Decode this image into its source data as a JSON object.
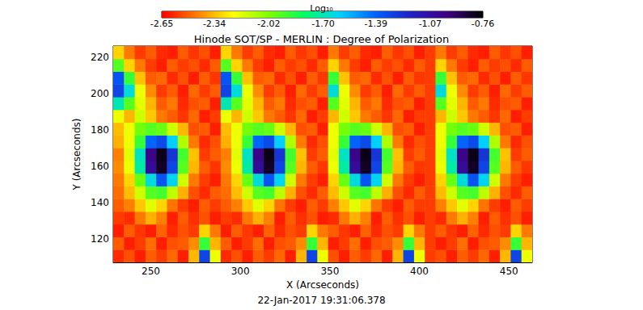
{
  "chart_data": {
    "type": "heatmap",
    "title": "Hinode SOT/SP - MERLIN : Degree of Polarization",
    "xlabel": "X (Arcseconds)",
    "ylabel": "Y (Arcseconds)",
    "annotations": [
      "22-Jan-2017 19:31:06.378"
    ],
    "xlim": [
      229,
      463
    ],
    "ylim": [
      107,
      226
    ],
    "xticks": [
      250,
      300,
      350,
      400,
      450
    ],
    "yticks": [
      120,
      140,
      160,
      180,
      200,
      220
    ],
    "grid": false,
    "colorbar": {
      "title": "Log₁₀",
      "zlim": [
        -2.65,
        -0.76
      ],
      "zticks": [
        -2.65,
        -2.34,
        -2.02,
        {
          "value": -1.7,
          "label": "-1.70"
        },
        -1.39,
        -1.07,
        -0.76
      ]
    },
    "cells": {
      "x_edges": [
        229,
        235,
        241,
        247,
        253,
        259,
        265,
        271,
        277,
        283,
        289,
        295,
        301,
        307,
        313,
        319,
        325,
        331,
        337,
        343,
        349,
        355,
        361,
        367,
        373,
        379,
        385,
        391,
        397,
        403,
        409,
        415,
        421,
        427,
        433,
        439,
        445,
        451,
        457,
        463
      ],
      "y_edges": [
        107,
        114,
        121,
        128,
        135,
        142,
        149,
        156,
        163,
        170,
        177,
        184,
        191,
        198,
        205,
        212,
        219,
        226
      ],
      "z": [
        [
          -2.58,
          -2.52,
          -2.6,
          -2.5,
          -2.55,
          -2.48,
          -2.6,
          -2.35,
          -1.3,
          -2.2,
          -2.58,
          -2.52,
          -2.6,
          -2.5,
          -2.55,
          -2.48,
          -2.6,
          -2.35,
          -1.3,
          -2.2,
          -2.52,
          -2.6,
          -2.5,
          -2.55,
          -2.48,
          -2.6,
          -2.35,
          -1.3,
          -2.2,
          -2.55,
          -2.52,
          -2.6,
          -2.5,
          -2.55,
          -2.48,
          -2.6,
          -2.35,
          -1.3,
          -2.2
        ],
        [
          -2.5,
          -2.6,
          -2.55,
          -2.47,
          -2.6,
          -2.52,
          -2.5,
          -2.42,
          -1.9,
          -2.35,
          -2.5,
          -2.6,
          -2.55,
          -2.47,
          -2.6,
          -2.52,
          -2.5,
          -2.42,
          -1.9,
          -2.35,
          -2.6,
          -2.55,
          -2.47,
          -2.6,
          -2.52,
          -2.5,
          -2.42,
          -1.9,
          -2.35,
          -2.55,
          -2.6,
          -2.55,
          -2.47,
          -2.6,
          -2.52,
          -2.5,
          -2.42,
          -1.9,
          -2.35
        ],
        [
          -2.6,
          -2.5,
          -2.56,
          -2.6,
          -2.49,
          -2.58,
          -2.52,
          -2.55,
          -2.3,
          -2.45,
          -2.6,
          -2.5,
          -2.56,
          -2.6,
          -2.49,
          -2.58,
          -2.52,
          -2.55,
          -2.3,
          -2.45,
          -2.5,
          -2.56,
          -2.6,
          -2.49,
          -2.58,
          -2.52,
          -2.55,
          -2.3,
          -2.45,
          -2.55,
          -2.5,
          -2.56,
          -2.6,
          -2.49,
          -2.58,
          -2.52,
          -2.55,
          -2.3,
          -2.45
        ],
        [
          -2.55,
          -2.58,
          -2.45,
          -2.36,
          -2.44,
          -2.6,
          -2.5,
          -2.57,
          -2.52,
          -2.6,
          -2.55,
          -2.58,
          -2.45,
          -2.36,
          -2.44,
          -2.6,
          -2.5,
          -2.57,
          -2.52,
          -2.6,
          -2.58,
          -2.45,
          -2.36,
          -2.44,
          -2.6,
          -2.5,
          -2.57,
          -2.52,
          -2.6,
          -2.55,
          -2.58,
          -2.45,
          -2.36,
          -2.44,
          -2.6,
          -2.5,
          -2.57,
          -2.52,
          -2.6
        ],
        [
          -2.5,
          -2.44,
          -2.32,
          -2.18,
          -2.3,
          -2.46,
          -2.55,
          -2.6,
          -2.5,
          -2.55,
          -2.5,
          -2.44,
          -2.32,
          -2.18,
          -2.3,
          -2.46,
          -2.55,
          -2.6,
          -2.5,
          -2.55,
          -2.44,
          -2.32,
          -2.18,
          -2.3,
          -2.46,
          -2.55,
          -2.6,
          -2.5,
          -2.55,
          -2.55,
          -2.44,
          -2.32,
          -2.18,
          -2.3,
          -2.46,
          -2.55,
          -2.6,
          -2.5,
          -2.55
        ],
        [
          -2.47,
          -2.34,
          -2.15,
          -1.95,
          -1.92,
          -2.12,
          -2.36,
          -2.52,
          -2.58,
          -2.5,
          -2.47,
          -2.34,
          -2.15,
          -1.95,
          -1.92,
          -2.12,
          -2.36,
          -2.52,
          -2.58,
          -2.5,
          -2.34,
          -2.15,
          -1.95,
          -1.92,
          -2.12,
          -2.36,
          -2.52,
          -2.58,
          -2.5,
          -2.55,
          -2.34,
          -2.15,
          -1.95,
          -1.92,
          -2.12,
          -2.36,
          -2.52,
          -2.58,
          -2.5
        ],
        [
          -2.45,
          -2.3,
          -1.98,
          -1.65,
          -1.35,
          -1.62,
          -2.15,
          -2.45,
          -2.55,
          -2.6,
          -2.45,
          -2.3,
          -1.98,
          -1.65,
          -1.35,
          -1.62,
          -2.15,
          -2.45,
          -2.55,
          -2.6,
          -2.3,
          -1.98,
          -1.65,
          -1.35,
          -1.62,
          -2.15,
          -2.45,
          -2.55,
          -2.6,
          -2.55,
          -2.3,
          -1.98,
          -1.65,
          -1.35,
          -1.62,
          -2.15,
          -2.45,
          -2.55,
          -2.6
        ],
        [
          -2.42,
          -2.2,
          -1.72,
          -1.05,
          -0.82,
          -1.3,
          -1.95,
          -2.35,
          -2.5,
          -2.56,
          -2.42,
          -2.2,
          -1.72,
          -1.05,
          -0.82,
          -1.3,
          -1.95,
          -2.35,
          -2.5,
          -2.56,
          -2.2,
          -1.72,
          -1.05,
          -0.82,
          -1.3,
          -1.95,
          -2.35,
          -2.5,
          -2.56,
          -2.55,
          -2.2,
          -1.72,
          -1.05,
          -0.82,
          -1.3,
          -1.95,
          -2.35,
          -2.5,
          -2.56
        ],
        [
          -2.44,
          -2.18,
          -1.68,
          -1.0,
          -0.8,
          -1.25,
          -1.92,
          -2.33,
          -2.55,
          -2.5,
          -2.44,
          -2.18,
          -1.68,
          -1.0,
          -0.8,
          -1.25,
          -1.92,
          -2.33,
          -2.55,
          -2.5,
          -2.18,
          -1.68,
          -1.0,
          -0.8,
          -1.25,
          -1.92,
          -2.33,
          -2.55,
          -2.5,
          -2.55,
          -2.18,
          -1.68,
          -1.0,
          -0.8,
          -1.25,
          -1.92,
          -2.33,
          -2.55,
          -2.5
        ],
        [
          -2.36,
          -2.2,
          -1.9,
          -1.4,
          -1.32,
          -1.6,
          -2.1,
          -2.45,
          -2.58,
          -2.52,
          -2.36,
          -2.2,
          -1.9,
          -1.4,
          -1.32,
          -1.6,
          -2.1,
          -2.45,
          -2.58,
          -2.52,
          -2.2,
          -1.9,
          -1.4,
          -1.32,
          -1.6,
          -2.1,
          -2.45,
          -2.58,
          -2.52,
          -2.55,
          -2.2,
          -1.9,
          -1.4,
          -1.32,
          -1.6,
          -2.1,
          -2.45,
          -2.58,
          -2.52
        ],
        [
          -2.34,
          -2.2,
          -2.0,
          -1.95,
          -1.98,
          -2.15,
          -2.35,
          -2.52,
          -2.5,
          -2.6,
          -2.34,
          -2.2,
          -2.0,
          -1.95,
          -1.98,
          -2.15,
          -2.35,
          -2.52,
          -2.5,
          -2.6,
          -2.2,
          -2.0,
          -1.95,
          -1.98,
          -2.15,
          -2.35,
          -2.52,
          -2.5,
          -2.6,
          -2.55,
          -2.2,
          -2.0,
          -1.95,
          -1.98,
          -2.15,
          -2.35,
          -2.52,
          -2.5,
          -2.6
        ],
        [
          -2.2,
          -2.35,
          -2.15,
          -2.32,
          -2.45,
          -2.5,
          -2.56,
          -2.48,
          -2.6,
          -2.55,
          -2.2,
          -2.35,
          -2.15,
          -2.32,
          -2.45,
          -2.5,
          -2.56,
          -2.48,
          -2.6,
          -2.55,
          -2.35,
          -2.15,
          -2.32,
          -2.45,
          -2.5,
          -2.56,
          -2.48,
          -2.6,
          -2.55,
          -2.55,
          -2.35,
          -2.15,
          -2.32,
          -2.45,
          -2.5,
          -2.56,
          -2.48,
          -2.6,
          -2.55
        ],
        [
          -1.7,
          -1.95,
          -2.18,
          -2.35,
          -2.5,
          -2.45,
          -2.58,
          -2.52,
          -2.5,
          -2.6,
          -1.7,
          -1.95,
          -2.18,
          -2.35,
          -2.5,
          -2.45,
          -2.58,
          -2.52,
          -2.5,
          -2.6,
          -1.95,
          -2.18,
          -2.35,
          -2.5,
          -2.45,
          -2.58,
          -2.52,
          -2.5,
          -2.6,
          -2.55,
          -1.95,
          -2.18,
          -2.35,
          -2.5,
          -2.45,
          -2.58,
          -2.52,
          -2.5,
          -2.6
        ],
        [
          -1.3,
          -1.65,
          -2.2,
          -2.42,
          -2.55,
          -2.5,
          -2.6,
          -2.48,
          -2.55,
          -2.5,
          -1.3,
          -1.65,
          -2.2,
          -2.42,
          -2.55,
          -2.5,
          -2.6,
          -2.48,
          -2.55,
          -2.5,
          -1.65,
          -2.2,
          -2.42,
          -2.55,
          -2.5,
          -2.6,
          -2.48,
          -2.55,
          -2.5,
          -2.55,
          -1.65,
          -2.2,
          -2.42,
          -2.55,
          -2.5,
          -2.6,
          -2.48,
          -2.55,
          -2.5
        ],
        [
          -1.35,
          -1.9,
          -2.33,
          -2.5,
          -2.48,
          -2.58,
          -2.52,
          -2.6,
          -2.5,
          -2.56,
          -1.35,
          -1.9,
          -2.33,
          -2.5,
          -2.48,
          -2.58,
          -2.52,
          -2.6,
          -2.5,
          -2.56,
          -1.9,
          -2.33,
          -2.5,
          -2.48,
          -2.58,
          -2.52,
          -2.6,
          -2.5,
          -2.56,
          -2.55,
          -1.9,
          -2.33,
          -2.5,
          -2.48,
          -2.58,
          -2.52,
          -2.6,
          -2.5,
          -2.56
        ],
        [
          -1.95,
          -2.3,
          -2.45,
          -2.55,
          -2.6,
          -2.5,
          -2.55,
          -2.52,
          -2.58,
          -2.5,
          -1.95,
          -2.3,
          -2.45,
          -2.55,
          -2.6,
          -2.5,
          -2.55,
          -2.52,
          -2.58,
          -2.5,
          -2.3,
          -2.45,
          -2.55,
          -2.6,
          -2.5,
          -2.55,
          -2.52,
          -2.58,
          -2.5,
          -2.55,
          -2.3,
          -2.45,
          -2.55,
          -2.6,
          -2.5,
          -2.55,
          -2.52,
          -2.58,
          -2.5
        ],
        [
          -2.3,
          -2.45,
          -2.55,
          -2.5,
          -2.58,
          -2.6,
          -2.5,
          -2.56,
          -2.52,
          -2.6,
          -2.3,
          -2.45,
          -2.55,
          -2.5,
          -2.58,
          -2.6,
          -2.5,
          -2.56,
          -2.52,
          -2.6,
          -2.45,
          -2.55,
          -2.5,
          -2.58,
          -2.6,
          -2.5,
          -2.56,
          -2.52,
          -2.6,
          -2.55,
          -2.45,
          -2.55,
          -2.5,
          -2.58,
          -2.6,
          -2.5,
          -2.56,
          -2.52,
          -2.6
        ]
      ]
    }
  }
}
